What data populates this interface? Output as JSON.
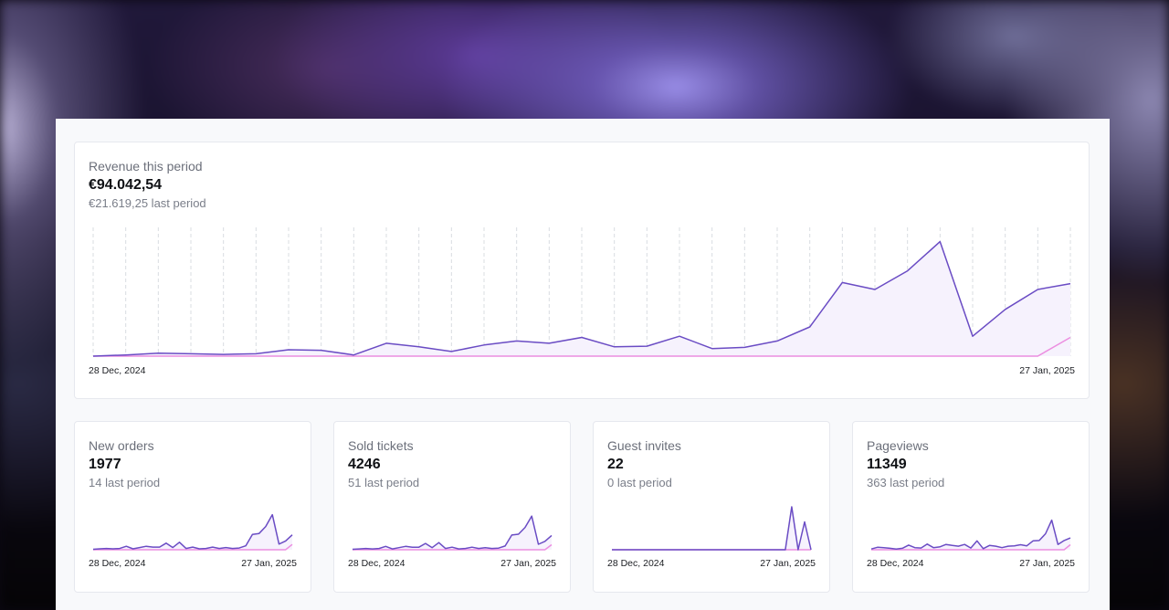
{
  "theme": {
    "current_color": "#6a4cc4",
    "current_fill": "#f6f2fd",
    "previous_color": "#ec8ee0",
    "gridline_color": "#d9dce2"
  },
  "revenue": {
    "label": "Revenue this period",
    "value": "€94.042,54",
    "previous": "€21.619,25 last period",
    "start_date": "28 Dec, 2024",
    "end_date": "27 Jan, 2025"
  },
  "cards": [
    {
      "label": "New orders",
      "value": "1977",
      "previous": "14 last period",
      "start_date": "28 Dec, 2024",
      "end_date": "27 Jan, 2025"
    },
    {
      "label": "Sold tickets",
      "value": "4246",
      "previous": "51 last period",
      "start_date": "28 Dec, 2024",
      "end_date": "27 Jan, 2025"
    },
    {
      "label": "Guest invites",
      "value": "22",
      "previous": "0 last period",
      "start_date": "28 Dec, 2024",
      "end_date": "27 Jan, 2025"
    },
    {
      "label": "Pageviews",
      "value": "11349",
      "previous": "363 last period",
      "start_date": "28 Dec, 2024",
      "end_date": "27 Jan, 2025"
    }
  ],
  "chart_data": [
    {
      "type": "area",
      "x_start": "28 Dec, 2024",
      "x_end": "27 Jan, 2025",
      "ylim": [
        0,
        100
      ],
      "grid": "vertical dashed",
      "series": [
        {
          "values": [
            0,
            1,
            2.5,
            2,
            1.5,
            2,
            5.5,
            5,
            1,
            11,
            8,
            4,
            9.5,
            13,
            11,
            16,
            8,
            8.5,
            17,
            6.5,
            7.5,
            13,
            25,
            63,
            57,
            73,
            98,
            17,
            40,
            57,
            62
          ]
        },
        {
          "values": [
            0,
            0,
            0,
            0,
            0,
            0,
            0,
            0,
            0,
            0,
            0,
            0,
            0,
            0,
            0,
            0,
            0,
            0,
            0,
            0,
            0,
            0,
            0,
            0,
            0,
            0,
            0,
            0,
            0,
            0,
            16
          ]
        }
      ]
    },
    {
      "type": "area",
      "x_start": "28 Dec, 2024",
      "x_end": "27 Jan, 2025",
      "ylim": [
        0,
        100
      ],
      "series": [
        {
          "values": [
            1,
            2,
            3,
            2,
            3,
            8,
            2,
            5,
            8,
            6,
            6,
            15,
            5,
            17,
            3,
            6,
            2,
            3,
            6,
            3,
            5,
            3,
            4,
            9,
            35,
            37,
            53,
            80,
            13,
            20,
            34
          ]
        },
        {
          "values": [
            0,
            0,
            0,
            0,
            0,
            0,
            0,
            0,
            0,
            0,
            0,
            0,
            0,
            0,
            0,
            0,
            0,
            0,
            0,
            0,
            0,
            0,
            0,
            0,
            0,
            0,
            0,
            0,
            0,
            0,
            12
          ]
        }
      ]
    },
    {
      "type": "area",
      "x_start": "28 Dec, 2024",
      "x_end": "27 Jan, 2025",
      "ylim": [
        0,
        100
      ],
      "series": [
        {
          "values": [
            1,
            2,
            3,
            2,
            3,
            8,
            2,
            5,
            8,
            6,
            6,
            15,
            5,
            17,
            3,
            6,
            2,
            3,
            6,
            3,
            5,
            3,
            4,
            9,
            35,
            37,
            53,
            80,
            13,
            20,
            34
          ]
        },
        {
          "values": [
            0,
            0,
            0,
            0,
            0,
            0,
            0,
            0,
            0,
            0,
            0,
            0,
            0,
            0,
            0,
            0,
            0,
            0,
            0,
            0,
            0,
            0,
            0,
            0,
            0,
            0,
            0,
            0,
            0,
            0,
            12
          ]
        }
      ]
    },
    {
      "type": "area",
      "x_start": "28 Dec, 2024",
      "x_end": "27 Jan, 2025",
      "ylim": [
        0,
        100
      ],
      "series": [
        {
          "values": [
            0,
            0,
            0,
            0,
            0,
            0,
            0,
            0,
            0,
            0,
            0,
            0,
            0,
            0,
            0,
            0,
            0,
            0,
            0,
            0,
            0,
            0,
            0,
            0,
            0,
            0,
            0,
            0,
            100,
            0,
            65,
            0
          ]
        },
        {
          "values": [
            0,
            0,
            0,
            0,
            0,
            0,
            0,
            0,
            0,
            0,
            0,
            0,
            0,
            0,
            0,
            0,
            0,
            0,
            0,
            0,
            0,
            0,
            0,
            0,
            0,
            0,
            0,
            0,
            0,
            0,
            0,
            0
          ]
        }
      ]
    },
    {
      "type": "area",
      "x_start": "28 Dec, 2024",
      "x_end": "27 Jan, 2025",
      "ylim": [
        0,
        100
      ],
      "series": [
        {
          "values": [
            2,
            7,
            6,
            4,
            2,
            4,
            13,
            6,
            5,
            16,
            6,
            8,
            15,
            12,
            10,
            15,
            5,
            25,
            3,
            12,
            10,
            6,
            10,
            11,
            14,
            11,
            25,
            26,
            45,
            83,
            15,
            26,
            33
          ]
        },
        {
          "values": [
            0,
            0,
            0,
            0,
            0,
            0,
            0,
            0,
            0,
            0,
            0,
            0,
            0,
            0,
            0,
            0,
            0,
            0,
            0,
            0,
            0,
            0,
            0,
            0,
            0,
            0,
            0,
            0,
            0,
            0,
            0,
            0,
            14
          ]
        }
      ]
    }
  ]
}
